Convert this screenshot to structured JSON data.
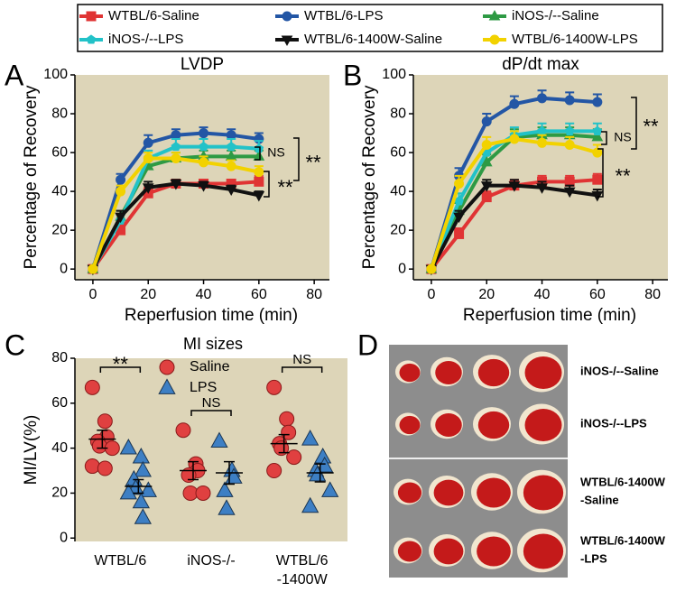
{
  "panels": [
    "A",
    "B",
    "C",
    "D"
  ],
  "chart_data": [
    {
      "type": "line",
      "title": "LVDP",
      "xlabel": "Reperfusion time (min)",
      "ylabel": "Percentage of Recovery",
      "x": [
        0,
        10,
        20,
        30,
        40,
        50,
        60
      ],
      "xlim": [
        -6.5,
        85.5
      ],
      "xticks": [
        0,
        20,
        40,
        60,
        80
      ],
      "ylim": [
        -5.5,
        100
      ],
      "yticks": [
        0,
        20,
        40,
        60,
        80,
        100
      ],
      "background": "#ddd5b8",
      "annotations": [
        "NS",
        "**",
        "**"
      ],
      "series": [
        {
          "name": "WTBL/6-Saline",
          "color": "#e03434",
          "marker": "square",
          "values": [
            0,
            20,
            39,
            44,
            44,
            44,
            45
          ],
          "errors": [
            1,
            3,
            3,
            2,
            2,
            2,
            3
          ]
        },
        {
          "name": "WTBL/6-LPS",
          "color": "#2356a5",
          "marker": "circle",
          "values": [
            0,
            46,
            65,
            69,
            70,
            69,
            67
          ],
          "errors": [
            1,
            3,
            4,
            3,
            3,
            3,
            3
          ]
        },
        {
          "name": "iNOS-/--Saline",
          "color": "#2e9a44",
          "marker": "triangle",
          "values": [
            0,
            27,
            53,
            57,
            58,
            58,
            58
          ],
          "errors": [
            1,
            3,
            3,
            3,
            3,
            3,
            3
          ]
        },
        {
          "name": "iNOS-/--LPS",
          "color": "#22c2c8",
          "marker": "pentagon",
          "values": [
            0,
            25,
            57,
            63,
            63,
            63,
            62
          ],
          "errors": [
            1,
            3,
            4,
            4,
            4,
            4,
            4
          ]
        },
        {
          "name": "WTBL/6-1400W-Saline",
          "color": "#111111",
          "marker": "triangle-down",
          "values": [
            0,
            27,
            42,
            44,
            43,
            41,
            38
          ],
          "errors": [
            1,
            3,
            3,
            2,
            2,
            2,
            2
          ]
        },
        {
          "name": "WTBL/6-1400W-LPS",
          "color": "#f2d200",
          "marker": "circle",
          "values": [
            0,
            40,
            57,
            57,
            55,
            53,
            50
          ],
          "errors": [
            1,
            3,
            3,
            3,
            3,
            3,
            3
          ]
        }
      ]
    },
    {
      "type": "line",
      "title": "dP/dt max",
      "xlabel": "Reperfusion time (min)",
      "ylabel": "Percentage of Recovery",
      "x": [
        0,
        10,
        20,
        30,
        40,
        50,
        60
      ],
      "xlim": [
        -6.5,
        85.5
      ],
      "xticks": [
        0,
        20,
        40,
        60,
        80
      ],
      "ylim": [
        -5.5,
        100
      ],
      "yticks": [
        0,
        20,
        40,
        60,
        80,
        100
      ],
      "background": "#ddd5b8",
      "annotations": [
        "NS",
        "**",
        "**"
      ],
      "series": [
        {
          "color": "#e03434",
          "marker": "square",
          "values": [
            0,
            18,
            37,
            43,
            45,
            45,
            46
          ],
          "errors": [
            1,
            3,
            3,
            3,
            3,
            3,
            3
          ]
        },
        {
          "color": "#2356a5",
          "marker": "circle",
          "values": [
            0,
            48,
            76,
            85,
            88,
            87,
            86
          ],
          "errors": [
            1,
            4,
            4,
            4,
            4,
            4,
            4
          ]
        },
        {
          "color": "#2e9a44",
          "marker": "triangle",
          "values": [
            0,
            30,
            55,
            68,
            69,
            69,
            68
          ],
          "errors": [
            1,
            4,
            4,
            4,
            4,
            4,
            4
          ]
        },
        {
          "color": "#22c2c8",
          "marker": "pentagon",
          "values": [
            0,
            35,
            60,
            69,
            71,
            71,
            71
          ],
          "errors": [
            1,
            4,
            4,
            4,
            4,
            4,
            4
          ]
        },
        {
          "color": "#111111",
          "marker": "triangle-down",
          "values": [
            0,
            27,
            43,
            43,
            42,
            40,
            38
          ],
          "errors": [
            1,
            3,
            3,
            3,
            3,
            3,
            3
          ]
        },
        {
          "color": "#f2d200",
          "marker": "circle",
          "values": [
            0,
            44,
            64,
            67,
            65,
            64,
            60
          ],
          "errors": [
            1,
            4,
            4,
            4,
            4,
            4,
            4
          ]
        }
      ]
    },
    {
      "type": "dot",
      "title": "MI sizes",
      "ylabel": "MI/LV(%)",
      "categories": [
        [
          "WTBL/6"
        ],
        [
          "iNOS-/-"
        ],
        [
          "WTBL/6",
          "-1400W"
        ]
      ],
      "ylim": [
        -1.5,
        80
      ],
      "yticks": [
        0,
        20,
        40,
        60,
        80
      ],
      "background": "#ddd5b8",
      "annotations": [
        "**",
        "NS",
        "NS"
      ],
      "series": [
        {
          "name": "Saline",
          "color": "#e04040",
          "marker": "circle",
          "values": [
            [
              67,
              52,
              45,
              43,
              41,
              40,
              32,
              31
            ],
            [
              48,
              33,
              30,
              28,
              20,
              20
            ],
            [
              67,
              53,
              47,
              42,
              40,
              36,
              30
            ]
          ],
          "means": [
            44,
            30,
            42
          ],
          "errors": [
            4,
            4,
            4
          ]
        },
        {
          "name": "LPS",
          "color": "#3d7fc4",
          "marker": "triangle",
          "values": [
            [
              40,
              36,
              30,
              26,
              22,
              21,
              20,
              16,
              9
            ],
            [
              43,
              30,
              27,
              21,
              13
            ],
            [
              44,
              36,
              32,
              30,
              28,
              21,
              14
            ]
          ],
          "means": [
            23,
            29,
            29
          ],
          "errors": [
            3,
            5,
            4
          ]
        }
      ]
    }
  ],
  "panel_d": {
    "labels": [
      [
        "iNOS-/--Saline"
      ],
      [
        "iNOS-/--LPS"
      ],
      [
        "WTBL/6-1400W",
        "-Saline"
      ],
      [
        "WTBL/6-1400W",
        "-LPS"
      ]
    ]
  }
}
